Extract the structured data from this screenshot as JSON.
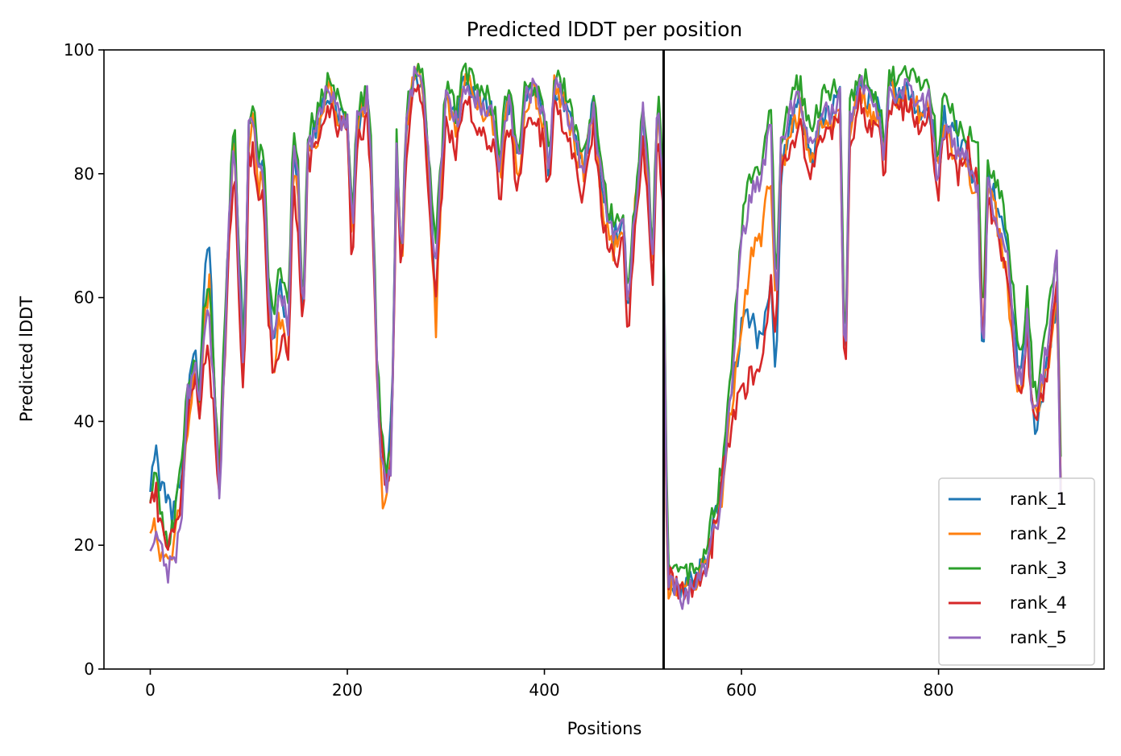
{
  "chart_data": {
    "type": "line",
    "title": "Predicted lDDT per position",
    "xlabel": "Positions",
    "ylabel": "Predicted lDDT",
    "xlim": [
      -47,
      968
    ],
    "ylim": [
      0,
      100
    ],
    "xticks": [
      0,
      200,
      400,
      600,
      800
    ],
    "yticks": [
      0,
      20,
      40,
      60,
      80,
      100
    ],
    "vline_x": 521,
    "legend_position": "lower-right",
    "grid": false,
    "profile_x": [
      0,
      5,
      10,
      18,
      25,
      32,
      38,
      45,
      50,
      55,
      60,
      65,
      70,
      80,
      85,
      90,
      95,
      100,
      105,
      110,
      115,
      120,
      125,
      130,
      135,
      140,
      145,
      150,
      155,
      160,
      170,
      180,
      190,
      200,
      205,
      210,
      220,
      225,
      230,
      235,
      240,
      245,
      250,
      255,
      260,
      265,
      270,
      275,
      280,
      285,
      290,
      295,
      300,
      310,
      320,
      330,
      340,
      350,
      355,
      360,
      365,
      370,
      375,
      380,
      390,
      400,
      405,
      410,
      420,
      430,
      440,
      450,
      455,
      460,
      470,
      480,
      485,
      490,
      500,
      505,
      510,
      515,
      520,
      525,
      530,
      540,
      550,
      560,
      570,
      580,
      590,
      600,
      610,
      620,
      630,
      635,
      640,
      650,
      660,
      670,
      680,
      690,
      700,
      705,
      710,
      720,
      730,
      740,
      745,
      750,
      760,
      770,
      780,
      790,
      800,
      805,
      810,
      820,
      830,
      840,
      845,
      850,
      860,
      870,
      880,
      885,
      890,
      895,
      900,
      910,
      920,
      924
    ],
    "series": [
      {
        "name": "rank_1",
        "color": "#1f77b4",
        "values": [
          30,
          36,
          31,
          26,
          25,
          32,
          44,
          52,
          44,
          66,
          68,
          48,
          30,
          72,
          88,
          68,
          50,
          88,
          90,
          80,
          82,
          62,
          50,
          62,
          60,
          55,
          85,
          78,
          55,
          85,
          88,
          93,
          90,
          88,
          70,
          88,
          92,
          80,
          50,
          35,
          30,
          40,
          85,
          65,
          88,
          94,
          96,
          95,
          88,
          74,
          58,
          80,
          92,
          88,
          96,
          92,
          92,
          88,
          80,
          90,
          92,
          84,
          82,
          92,
          94,
          88,
          80,
          94,
          92,
          86,
          80,
          92,
          82,
          76,
          70,
          72,
          58,
          70,
          90,
          80,
          66,
          92,
          80,
          16,
          14,
          13,
          14,
          16,
          22,
          30,
          45,
          55,
          57,
          52,
          62,
          48,
          80,
          88,
          92,
          82,
          88,
          90,
          92,
          44,
          88,
          94,
          92,
          90,
          82,
          94,
          92,
          94,
          90,
          92,
          80,
          90,
          88,
          86,
          82,
          78,
          48,
          80,
          74,
          68,
          50,
          48,
          58,
          42,
          38,
          50,
          60,
          32
        ]
      },
      {
        "name": "rank_2",
        "color": "#ff7f0e",
        "values": [
          24,
          22,
          18,
          16,
          22,
          30,
          38,
          50,
          40,
          56,
          62,
          45,
          28,
          70,
          86,
          62,
          46,
          86,
          88,
          78,
          80,
          60,
          45,
          58,
          55,
          52,
          82,
          76,
          55,
          84,
          86,
          94,
          90,
          88,
          68,
          88,
          92,
          78,
          48,
          28,
          27,
          36,
          84,
          63,
          87,
          95,
          96,
          95,
          86,
          72,
          54,
          78,
          92,
          86,
          96,
          93,
          90,
          88,
          78,
          88,
          92,
          83,
          80,
          91,
          94,
          87,
          78,
          94,
          92,
          85,
          80,
          90,
          80,
          74,
          68,
          70,
          56,
          70,
          90,
          78,
          64,
          92,
          78,
          13,
          14,
          13,
          14,
          16,
          20,
          28,
          42,
          56,
          66,
          70,
          80,
          55,
          82,
          86,
          90,
          82,
          88,
          88,
          92,
          46,
          86,
          94,
          90,
          88,
          82,
          94,
          92,
          92,
          90,
          92,
          80,
          88,
          86,
          82,
          80,
          76,
          50,
          78,
          72,
          62,
          46,
          44,
          56,
          42,
          40,
          48,
          60,
          30
        ]
      },
      {
        "name": "rank_3",
        "color": "#2ca02c",
        "values": [
          28,
          32,
          26,
          21,
          24,
          34,
          45,
          52,
          44,
          60,
          62,
          46,
          32,
          74,
          90,
          66,
          50,
          90,
          92,
          82,
          84,
          64,
          55,
          64,
          62,
          58,
          86,
          80,
          58,
          86,
          90,
          95,
          92,
          90,
          72,
          90,
          94,
          82,
          50,
          38,
          33,
          38,
          86,
          66,
          90,
          96,
          97,
          96,
          90,
          76,
          70,
          82,
          94,
          90,
          97,
          94,
          93,
          90,
          82,
          92,
          94,
          86,
          84,
          93,
          95,
          90,
          82,
          95,
          94,
          88,
          82,
          93,
          84,
          78,
          72,
          74,
          60,
          72,
          92,
          82,
          68,
          94,
          82,
          18,
          16,
          15,
          16,
          18,
          24,
          32,
          50,
          72,
          80,
          82,
          92,
          60,
          86,
          92,
          95,
          86,
          92,
          94,
          95,
          48,
          92,
          97,
          94,
          92,
          84,
          97,
          95,
          96,
          94,
          95,
          82,
          92,
          90,
          88,
          86,
          84,
          55,
          82,
          78,
          72,
          54,
          52,
          62,
          48,
          44,
          56,
          68,
          34
        ]
      },
      {
        "name": "rank_4",
        "color": "#d62728",
        "values": [
          28,
          29,
          24,
          20,
          21,
          28,
          40,
          48,
          42,
          52,
          50,
          40,
          28,
          68,
          82,
          58,
          44,
          82,
          84,
          74,
          76,
          56,
          48,
          52,
          54,
          50,
          78,
          70,
          54,
          82,
          84,
          90,
          88,
          86,
          64,
          86,
          88,
          76,
          46,
          34,
          30,
          36,
          80,
          62,
          84,
          92,
          94,
          93,
          84,
          70,
          62,
          74,
          88,
          84,
          92,
          88,
          86,
          84,
          76,
          86,
          88,
          80,
          78,
          88,
          90,
          84,
          76,
          90,
          88,
          82,
          76,
          88,
          78,
          72,
          66,
          68,
          54,
          66,
          86,
          76,
          62,
          88,
          76,
          15,
          14,
          12,
          13,
          15,
          20,
          30,
          40,
          44,
          48,
          48,
          64,
          52,
          80,
          84,
          88,
          80,
          86,
          86,
          90,
          42,
          84,
          92,
          88,
          86,
          80,
          92,
          90,
          92,
          88,
          90,
          76,
          86,
          84,
          80,
          84,
          78,
          50,
          76,
          70,
          64,
          46,
          46,
          54,
          42,
          40,
          48,
          64,
          30
        ]
      },
      {
        "name": "rank_5",
        "color": "#9467bd",
        "values": [
          21,
          22,
          19,
          16,
          17,
          24,
          44,
          50,
          42,
          56,
          58,
          44,
          27,
          72,
          88,
          64,
          48,
          88,
          90,
          80,
          82,
          62,
          52,
          60,
          60,
          55,
          84,
          78,
          56,
          85,
          88,
          94,
          90,
          88,
          70,
          88,
          92,
          80,
          48,
          32,
          29,
          34,
          84,
          64,
          88,
          94,
          96,
          95,
          88,
          74,
          66,
          80,
          92,
          88,
          95,
          92,
          91,
          88,
          80,
          90,
          92,
          84,
          82,
          92,
          94,
          88,
          80,
          94,
          92,
          86,
          80,
          92,
          82,
          76,
          70,
          72,
          58,
          70,
          90,
          80,
          66,
          92,
          80,
          15,
          14,
          11,
          13,
          15,
          20,
          28,
          46,
          68,
          76,
          80,
          88,
          56,
          84,
          90,
          92,
          84,
          90,
          90,
          92,
          42,
          88,
          95,
          92,
          90,
          82,
          95,
          92,
          94,
          90,
          92,
          78,
          88,
          86,
          84,
          82,
          76,
          48,
          78,
          72,
          66,
          48,
          46,
          56,
          40,
          42,
          52,
          66,
          28
        ]
      }
    ]
  }
}
